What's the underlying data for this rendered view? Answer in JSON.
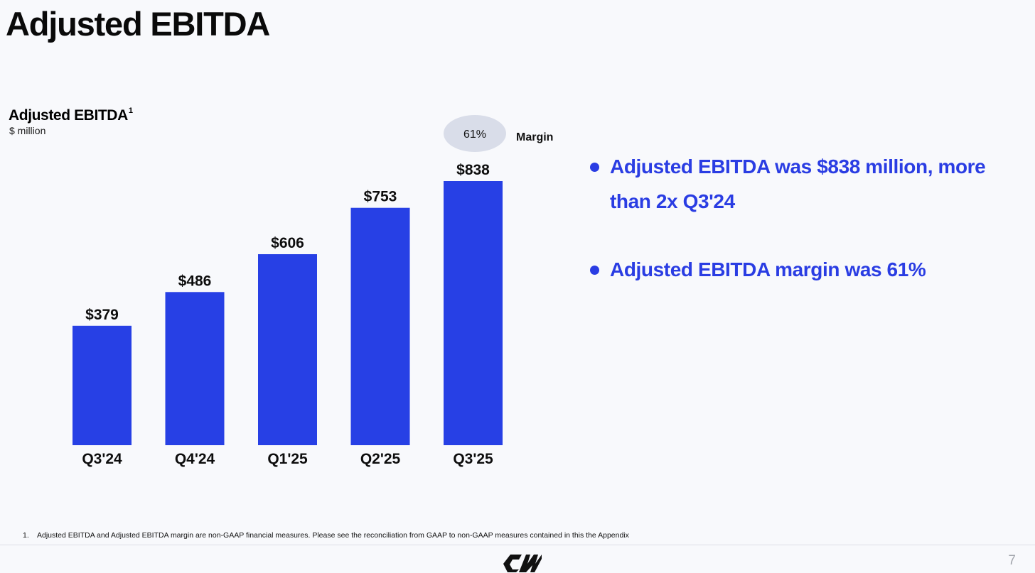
{
  "slide": {
    "title": "Adjusted EBITDA",
    "page_number": "7"
  },
  "chart_data": {
    "type": "bar",
    "title": "Adjusted EBITDA",
    "title_footnote_marker": "1",
    "unit_label": "$ million",
    "categories": [
      "Q3'24",
      "Q4'24",
      "Q1'25",
      "Q2'25",
      "Q3'25"
    ],
    "values": [
      379,
      486,
      606,
      753,
      838
    ],
    "data_labels": [
      "$379",
      "$486",
      "$606",
      "$753",
      "$838"
    ],
    "bar_color": "#2740e5",
    "ylim": [
      0,
      838
    ],
    "annotation": {
      "category": "Q3'25",
      "value_label": "61%",
      "caption": "Margin"
    }
  },
  "bullets": [
    {
      "text": "Adjusted EBITDA was $838 million, more than 2x Q3'24"
    },
    {
      "text": "Adjusted EBITDA margin was 61%"
    }
  ],
  "accent_color": "#2a3de3",
  "footnote": {
    "number": "1.",
    "text": "Adjusted EBITDA and Adjusted EBITDA margin are non-GAAP financial measures. Please see the reconciliation from GAAP to non-GAAP measures contained in this the Appendix"
  },
  "logo": {
    "icon": "coreweave-logo-icon"
  }
}
